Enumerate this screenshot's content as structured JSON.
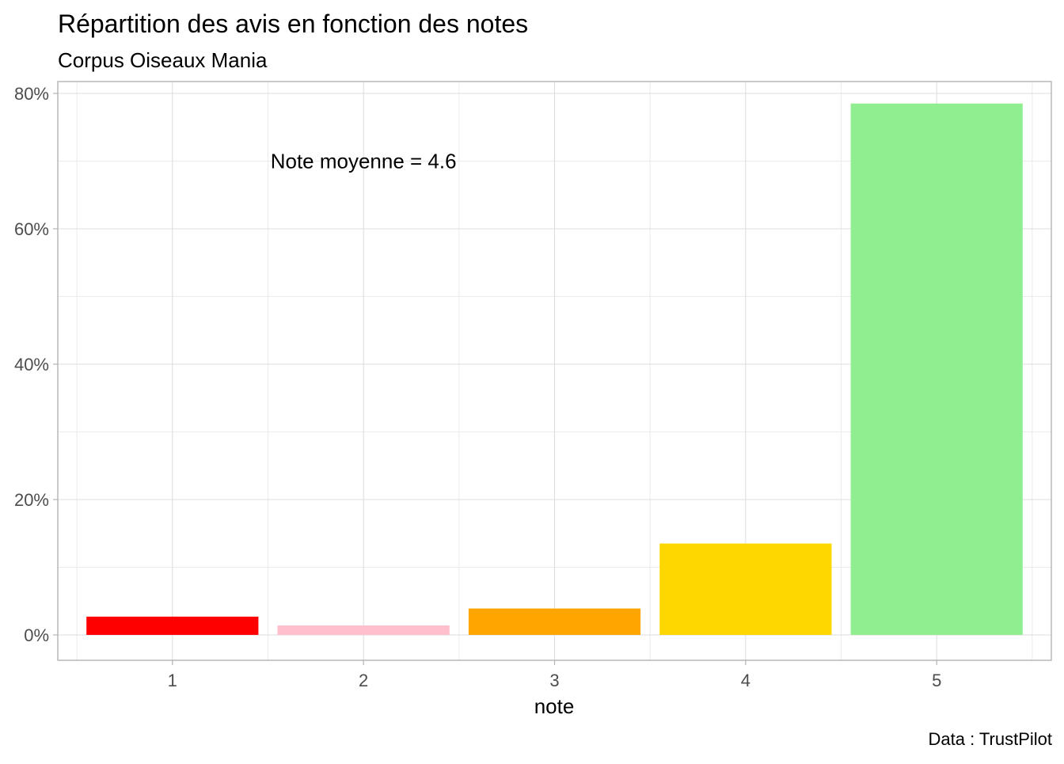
{
  "chart_data": {
    "type": "bar",
    "title": "Répartition des avis en fonction des notes",
    "subtitle": "Corpus Oiseaux Mania",
    "xlabel": "note",
    "ylabel": "",
    "caption": "Data : TrustPilot",
    "annotation": "Note moyenne =  4.6",
    "annotation_position": {
      "x": 2.0,
      "y": 0.7
    },
    "categories": [
      "1",
      "2",
      "3",
      "4",
      "5"
    ],
    "values": [
      0.027,
      0.014,
      0.039,
      0.135,
      0.785
    ],
    "colors": [
      "#FF0000",
      "#FFC0CB",
      "#FFA500",
      "#FFD700",
      "#90EE90"
    ],
    "ylim": [
      -0.0375,
      0.8175
    ],
    "y_ticks": [
      0,
      0.2,
      0.4,
      0.6,
      0.8
    ],
    "y_tick_labels": [
      "0%",
      "20%",
      "40%",
      "60%",
      "80%"
    ],
    "y_minor_ticks": [
      0.1,
      0.3,
      0.5,
      0.7
    ],
    "grid": true,
    "legend": "none",
    "colors_theme": {
      "grid_major": "#DCDCDC",
      "grid_minor": "#EBEBEB",
      "panel_border": "#B3B3B3",
      "tick_text": "#4D4D4D",
      "text": "#000000"
    }
  }
}
